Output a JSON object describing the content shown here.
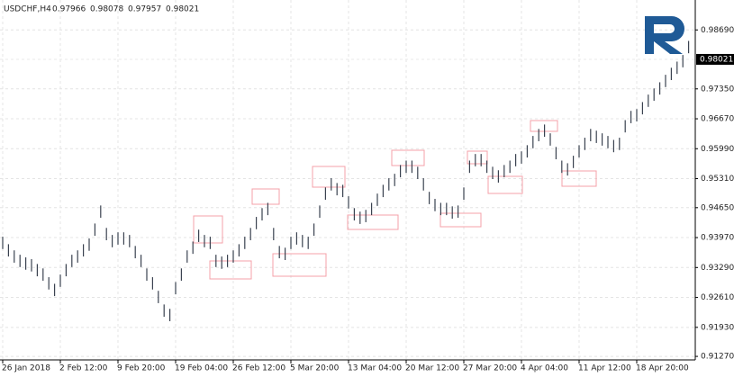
{
  "chart_data": {
    "type": "ohlc",
    "symbol": "USDCHF,H4",
    "ohlc": [
      0.97966,
      0.98078,
      0.97957,
      0.98021
    ],
    "current_price": 0.98021,
    "color": "#3a4250",
    "grid": true,
    "ylim": [
      0.9119,
      0.9937
    ],
    "yticks": [
      {
        "value": 0.9869,
        "label": "0.98690"
      },
      {
        "value": 0.9735,
        "label": "0.97350"
      },
      {
        "value": 0.9667,
        "label": "0.96670"
      },
      {
        "value": 0.9599,
        "label": "0.95990"
      },
      {
        "value": 0.9531,
        "label": "0.95310"
      },
      {
        "value": 0.9465,
        "label": "0.94650"
      },
      {
        "value": 0.9397,
        "label": "0.93970"
      },
      {
        "value": 0.9329,
        "label": "0.93290"
      },
      {
        "value": 0.9261,
        "label": "0.92610"
      },
      {
        "value": 0.9193,
        "label": "0.91930"
      },
      {
        "value": 0.9127,
        "label": "0.91270"
      }
    ],
    "categories": [
      "26 Jan 2018",
      null,
      null,
      null,
      null,
      null,
      null,
      null,
      null,
      null,
      "2 Feb 12:00",
      null,
      null,
      null,
      null,
      null,
      null,
      null,
      null,
      null,
      "9 Feb 20:00",
      null,
      null,
      null,
      null,
      null,
      null,
      null,
      null,
      null,
      "19 Feb 04:00",
      null,
      null,
      null,
      null,
      null,
      null,
      null,
      null,
      null,
      "26 Feb 12:00",
      null,
      null,
      null,
      null,
      null,
      null,
      null,
      null,
      null,
      "5 Mar 20:00",
      null,
      null,
      null,
      null,
      null,
      null,
      null,
      null,
      null,
      "13 Mar 04:00",
      null,
      null,
      null,
      null,
      null,
      null,
      null,
      null,
      null,
      "20 Mar 12:00",
      null,
      null,
      null,
      null,
      null,
      null,
      null,
      null,
      null,
      "27 Mar 20:00",
      null,
      null,
      null,
      null,
      null,
      null,
      null,
      null,
      null,
      "4 Apr 04:00",
      null,
      null,
      null,
      null,
      null,
      null,
      null,
      null,
      null,
      "11 Apr 12:00",
      null,
      null,
      null,
      null,
      null,
      null,
      null,
      null,
      null,
      "18 Apr 20:00",
      null,
      null,
      null,
      null,
      null,
      null,
      null,
      null,
      null
    ],
    "high": [
      0.9399,
      0.9382,
      0.9368,
      0.9358,
      0.9352,
      0.9348,
      0.9337,
      0.9327,
      0.9307,
      0.9292,
      0.9313,
      0.9337,
      0.9358,
      0.9368,
      0.9382,
      0.9395,
      0.9429,
      0.947,
      0.9419,
      0.9403,
      0.9409,
      0.9409,
      0.9403,
      0.9378,
      0.9358,
      0.9327,
      0.9307,
      0.9276,
      0.9245,
      0.9235,
      0.9296,
      0.9327,
      0.9368,
      0.9388,
      0.9415,
      0.9403,
      0.9399,
      0.9358,
      0.9354,
      0.9358,
      0.9368,
      0.9382,
      0.9399,
      0.9419,
      0.9444,
      0.9464,
      0.9476,
      0.9419,
      0.9378,
      0.9374,
      0.9399,
      0.9409,
      0.9403,
      0.9399,
      0.9429,
      0.947,
      0.9511,
      0.9532,
      0.9521,
      0.9517,
      0.9491,
      0.9464,
      0.9456,
      0.946,
      0.9476,
      0.9497,
      0.9517,
      0.9532,
      0.9542,
      0.9562,
      0.9572,
      0.9572,
      0.9558,
      0.9532,
      0.9501,
      0.9485,
      0.9476,
      0.9476,
      0.9468,
      0.947,
      0.9511,
      0.9572,
      0.9587,
      0.9587,
      0.9572,
      0.9558,
      0.955,
      0.9562,
      0.9572,
      0.9587,
      0.9593,
      0.9607,
      0.9628,
      0.9644,
      0.9654,
      0.9634,
      0.9603,
      0.9572,
      0.9566,
      0.9583,
      0.9607,
      0.9624,
      0.9644,
      0.964,
      0.9634,
      0.9628,
      0.9619,
      0.9624,
      0.9664,
      0.9685,
      0.9689,
      0.9705,
      0.9722,
      0.9736,
      0.975,
      0.9767,
      0.9783,
      0.9797,
      0.9812,
      0.9844
    ],
    "low": [
      0.9371,
      0.9354,
      0.934,
      0.933,
      0.9324,
      0.932,
      0.9309,
      0.9299,
      0.9279,
      0.9264,
      0.9285,
      0.9309,
      0.933,
      0.934,
      0.9354,
      0.9367,
      0.9401,
      0.9442,
      0.9391,
      0.9375,
      0.9381,
      0.9381,
      0.9375,
      0.935,
      0.933,
      0.9299,
      0.9279,
      0.9248,
      0.9217,
      0.9207,
      0.9268,
      0.9299,
      0.934,
      0.936,
      0.9387,
      0.9375,
      0.9371,
      0.933,
      0.9326,
      0.933,
      0.934,
      0.9354,
      0.9371,
      0.9391,
      0.9416,
      0.9436,
      0.9448,
      0.9391,
      0.935,
      0.9346,
      0.9371,
      0.9381,
      0.9375,
      0.9371,
      0.9401,
      0.9442,
      0.9483,
      0.9504,
      0.9493,
      0.9489,
      0.9463,
      0.9436,
      0.9428,
      0.9432,
      0.9448,
      0.9469,
      0.9489,
      0.9504,
      0.9514,
      0.9534,
      0.9544,
      0.9544,
      0.953,
      0.9504,
      0.9473,
      0.9457,
      0.9448,
      0.9448,
      0.944,
      0.9442,
      0.9483,
      0.9544,
      0.9559,
      0.9559,
      0.9544,
      0.953,
      0.9522,
      0.9534,
      0.9544,
      0.9559,
      0.9565,
      0.9579,
      0.96,
      0.9616,
      0.9626,
      0.9606,
      0.9575,
      0.9544,
      0.9538,
      0.9555,
      0.9579,
      0.9596,
      0.9616,
      0.9612,
      0.9606,
      0.96,
      0.9591,
      0.9596,
      0.9636,
      0.9657,
      0.9661,
      0.9677,
      0.9694,
      0.9708,
      0.9722,
      0.9739,
      0.9755,
      0.9769,
      0.9784,
      0.9816
    ]
  }
}
